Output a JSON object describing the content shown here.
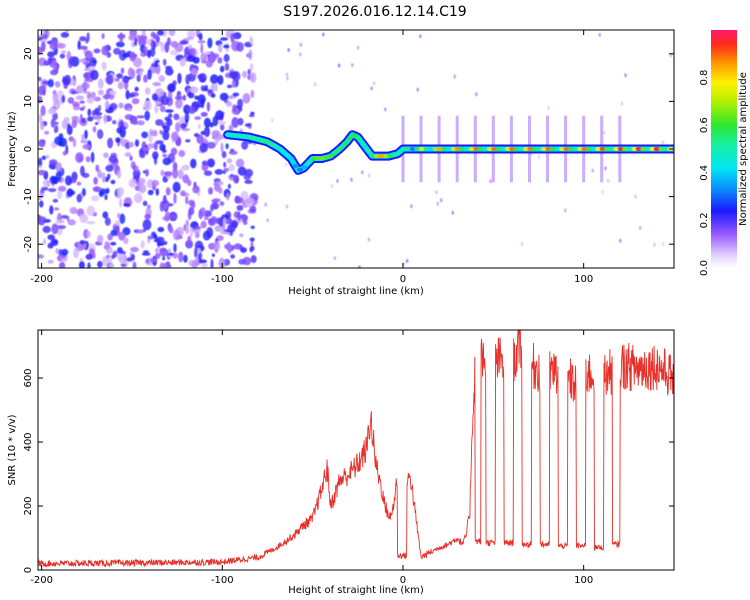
{
  "title": "S197.2026.016.12.14.C19",
  "chart_data": [
    {
      "type": "heatmap",
      "name": "spectrogram",
      "xlabel": "Height of straight line (km)",
      "ylabel": "Frequency (Hz)",
      "xlim": [
        -202,
        150
      ],
      "ylim": [
        -25,
        25
      ],
      "xticks": [
        -200,
        -100,
        0,
        100
      ],
      "xtick_labels": [
        "-200",
        "-100",
        "0",
        "100"
      ],
      "yticks": [
        -20,
        -10,
        0,
        10,
        20
      ],
      "ytick_labels": [
        "-20",
        "-10",
        "0",
        "10",
        "20"
      ],
      "colorbar": {
        "label": "Normalized spectral amplitude",
        "range": [
          0,
          1
        ],
        "ticks": [
          0.0,
          0.2,
          0.4,
          0.6,
          0.8
        ],
        "tick_labels": [
          "0.0",
          "0.2",
          "0.4",
          "0.6",
          "0.8"
        ]
      },
      "noise_region_x": [
        -202,
        -82
      ],
      "track": {
        "x": [
          -97,
          -85,
          -75,
          -68,
          -62,
          -58,
          -55,
          -50,
          -45,
          -40,
          -35,
          -31,
          -28,
          -25,
          -22,
          -20,
          -17,
          -15,
          -12,
          -8,
          -3,
          0,
          3,
          10,
          20,
          40,
          60,
          80,
          100,
          120,
          150
        ],
        "y": [
          3,
          2.5,
          1.5,
          0,
          -2,
          -4.5,
          -4,
          -2,
          -2,
          -1.5,
          0,
          1.5,
          3,
          2.5,
          1,
          0,
          -1.5,
          -1.5,
          -1.5,
          -1.5,
          -1,
          0,
          0,
          0,
          0,
          0,
          0,
          0,
          0,
          0,
          0
        ],
        "amplitude": [
          0.45,
          0.5,
          0.55,
          0.45,
          0.4,
          0.3,
          0.35,
          0.6,
          0.65,
          0.6,
          0.55,
          0.6,
          0.6,
          0.55,
          0.5,
          0.5,
          0.55,
          0.65,
          0.85,
          0.6,
          0.5,
          0.5,
          0.55,
          0.75,
          0.85,
          0.9,
          0.9,
          0.9,
          0.9,
          0.95,
          0.95
        ]
      }
    },
    {
      "type": "line",
      "name": "snr",
      "xlabel": "Height of straight line (km)",
      "ylabel": "SNR (10 * v/v)",
      "xlim": [
        -202,
        150
      ],
      "ylim": [
        0,
        750
      ],
      "xticks": [
        -200,
        -100,
        0,
        100
      ],
      "xtick_labels": [
        "-200",
        "-100",
        "0",
        "100"
      ],
      "yticks": [
        0,
        200,
        400,
        600
      ],
      "ytick_labels": [
        "0",
        "200",
        "400",
        "600"
      ],
      "color": "#e8302a",
      "envelope": {
        "x": [
          -202,
          -150,
          -100,
          -80,
          -70,
          -65,
          -60,
          -55,
          -50,
          -45,
          -42,
          -40,
          -38,
          -35,
          -30,
          -25,
          -20,
          -18,
          -15,
          -12,
          -10,
          -7,
          -5,
          -3,
          -2,
          0,
          2,
          4,
          10,
          20,
          25,
          30,
          33,
          35,
          37,
          38,
          40,
          50,
          60,
          65,
          68,
          70,
          80,
          90,
          95,
          100,
          110,
          120,
          130,
          140,
          150
        ],
        "y": [
          20,
          22,
          25,
          40,
          70,
          90,
          110,
          140,
          160,
          250,
          320,
          200,
          230,
          280,
          300,
          330,
          380,
          480,
          330,
          260,
          200,
          160,
          210,
          300,
          50,
          60,
          260,
          300,
          40,
          70,
          80,
          100,
          80,
          110,
          180,
          400,
          650,
          660,
          640,
          700,
          680,
          640,
          620,
          610,
          580,
          620,
          600,
          640,
          630,
          640,
          600
        ]
      },
      "dropouts": [
        {
          "x": [
            -3,
            2
          ],
          "level": 45
        },
        {
          "x": [
            40,
            43
          ],
          "level": 90
        },
        {
          "x": [
            46,
            51
          ],
          "level": 85
        },
        {
          "x": [
            56,
            61
          ],
          "level": 85
        },
        {
          "x": [
            66,
            71
          ],
          "level": 80
        },
        {
          "x": [
            76,
            81
          ],
          "level": 80
        },
        {
          "x": [
            86,
            91
          ],
          "level": 75
        },
        {
          "x": [
            96,
            101
          ],
          "level": 75
        },
        {
          "x": [
            106,
            111
          ],
          "level": 70
        },
        {
          "x": [
            116,
            120
          ],
          "level": 80
        }
      ]
    }
  ]
}
